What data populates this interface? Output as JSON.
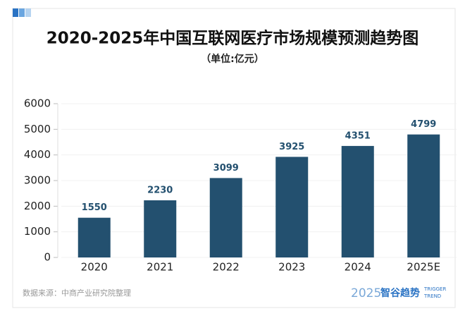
{
  "chart_data": {
    "type": "bar",
    "title": "2020-2025年中国互联网医疗市场规模预测趋势图",
    "subtitle": "（单位:亿元）",
    "categories": [
      "2020",
      "2021",
      "2022",
      "2023",
      "2024",
      "2025E"
    ],
    "values": [
      1550,
      2230,
      3099,
      3925,
      4351,
      4799
    ],
    "color": "#23506f",
    "ylim": [
      0,
      6000
    ],
    "yticks": [
      0,
      1000,
      2000,
      3000,
      4000,
      5000,
      6000
    ],
    "grid": true
  },
  "footer": {
    "source": "数据来源：中商产业研究院整理",
    "logo_year": "2025",
    "logo_name": "智谷趋势",
    "logo_en_1": "TRIGGER",
    "logo_en_2": "TREND"
  }
}
